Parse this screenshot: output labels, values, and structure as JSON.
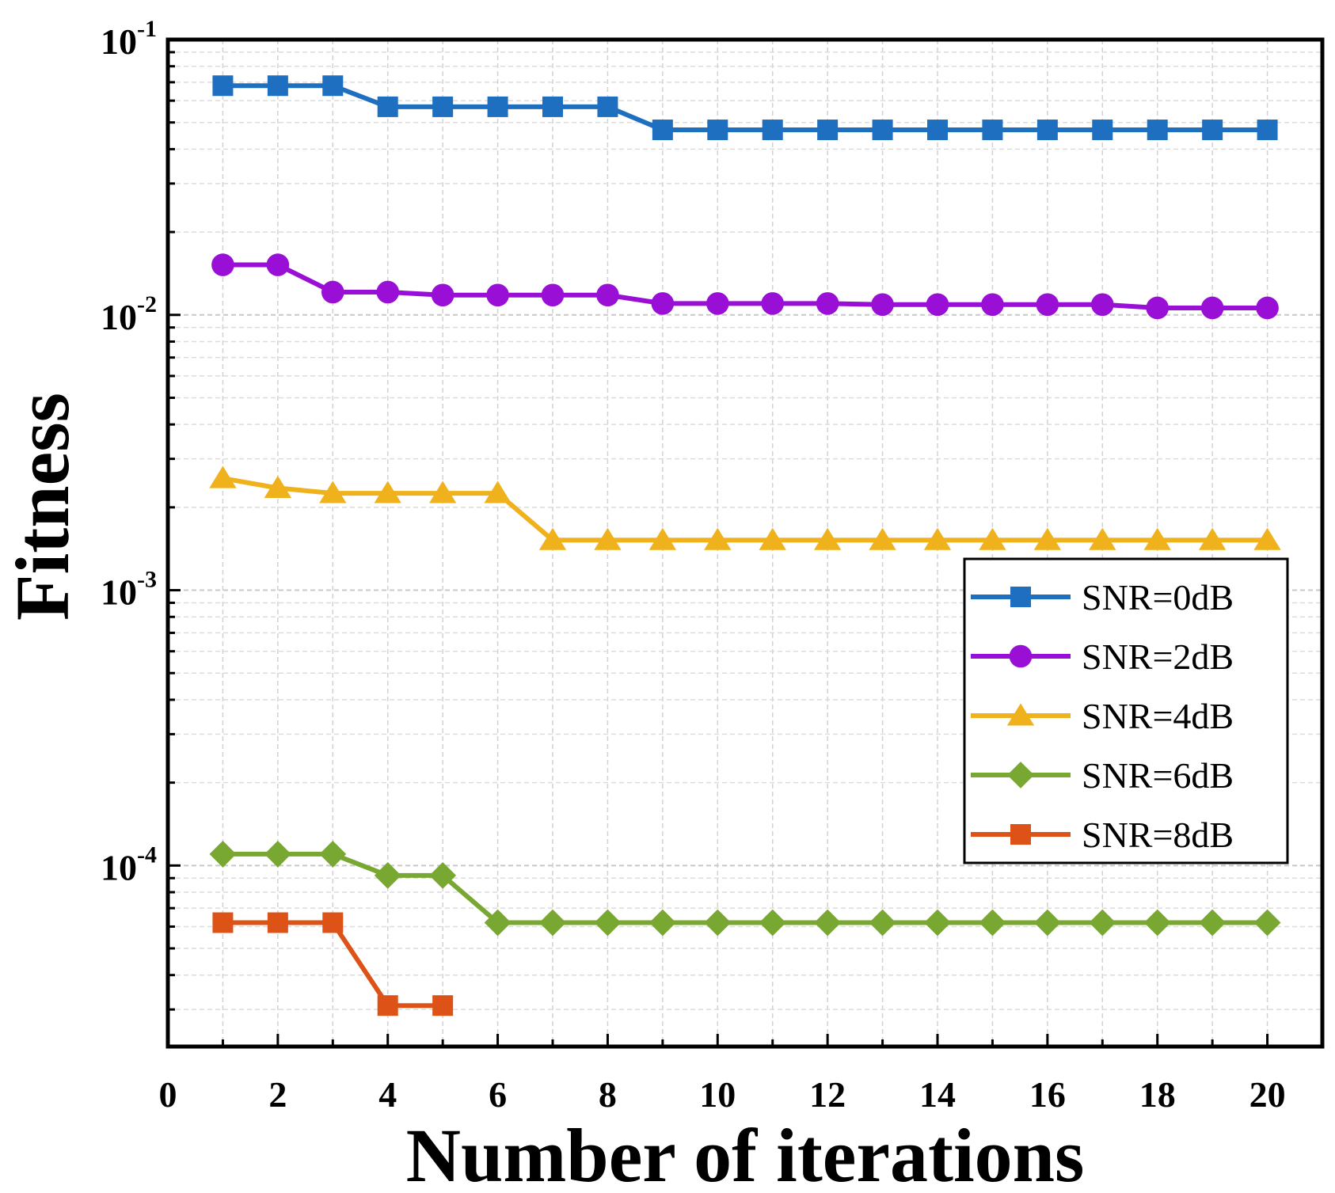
{
  "chart_data": {
    "type": "line",
    "title": "",
    "xlabel": "Number of iterations",
    "ylabel": "Fitness",
    "xlim": [
      0,
      21
    ],
    "ylim": [
      2.2e-05,
      0.1
    ],
    "yscale": "log",
    "grid": true,
    "legend_position": "center-right",
    "x_ticks": [
      "0",
      "2",
      "4",
      "6",
      "8",
      "10",
      "12",
      "14",
      "16",
      "18",
      "20"
    ],
    "y_ticks": [
      {
        "base": "10",
        "exp": "-1",
        "value": 0.1
      },
      {
        "base": "10",
        "exp": "-2",
        "value": 0.01
      },
      {
        "base": "10",
        "exp": "-3",
        "value": 0.001
      },
      {
        "base": "10",
        "exp": "-4",
        "value": 0.0001
      }
    ],
    "series": [
      {
        "name": "SNR=0dB",
        "color": "#1f6fc0",
        "marker": "square",
        "x": [
          1,
          2,
          3,
          4,
          5,
          6,
          7,
          8,
          9,
          10,
          11,
          12,
          13,
          14,
          15,
          16,
          17,
          18,
          19,
          20
        ],
        "values": [
          0.068,
          0.068,
          0.068,
          0.057,
          0.057,
          0.057,
          0.057,
          0.057,
          0.047,
          0.047,
          0.047,
          0.047,
          0.047,
          0.047,
          0.047,
          0.047,
          0.047,
          0.047,
          0.047,
          0.047
        ]
      },
      {
        "name": "SNR=2dB",
        "color": "#9a0fd6",
        "marker": "circle",
        "x": [
          1,
          2,
          3,
          4,
          5,
          6,
          7,
          8,
          9,
          10,
          11,
          12,
          13,
          14,
          15,
          16,
          17,
          18,
          19,
          20
        ],
        "values": [
          0.0152,
          0.0152,
          0.0121,
          0.0121,
          0.0118,
          0.0118,
          0.0118,
          0.0118,
          0.011,
          0.011,
          0.011,
          0.011,
          0.0109,
          0.0109,
          0.0109,
          0.0109,
          0.0109,
          0.0106,
          0.0106,
          0.0106
        ]
      },
      {
        "name": "SNR=4dB",
        "color": "#f0b21c",
        "marker": "triangle",
        "x": [
          1,
          2,
          3,
          4,
          5,
          6,
          7,
          8,
          9,
          10,
          11,
          12,
          13,
          14,
          15,
          16,
          17,
          18,
          19,
          20
        ],
        "values": [
          0.00255,
          0.00235,
          0.00225,
          0.00225,
          0.00225,
          0.00225,
          0.00152,
          0.00152,
          0.00152,
          0.00152,
          0.00152,
          0.00152,
          0.00152,
          0.00152,
          0.00152,
          0.00152,
          0.00152,
          0.00152,
          0.00152,
          0.00152
        ]
      },
      {
        "name": "SNR=6dB",
        "color": "#78a832",
        "marker": "diamond",
        "x": [
          1,
          2,
          3,
          4,
          5,
          6,
          7,
          8,
          9,
          10,
          11,
          12,
          13,
          14,
          15,
          16,
          17,
          18,
          19,
          20
        ],
        "values": [
          0.00011,
          0.00011,
          0.00011,
          9.2e-05,
          9.2e-05,
          6.2e-05,
          6.2e-05,
          6.2e-05,
          6.2e-05,
          6.2e-05,
          6.2e-05,
          6.2e-05,
          6.2e-05,
          6.2e-05,
          6.2e-05,
          6.2e-05,
          6.2e-05,
          6.2e-05,
          6.2e-05,
          6.2e-05
        ]
      },
      {
        "name": "SNR=8dB",
        "color": "#dd5317",
        "marker": "square",
        "x": [
          1,
          2,
          3,
          4,
          5
        ],
        "values": [
          6.2e-05,
          6.2e-05,
          6.2e-05,
          3.1e-05,
          3.1e-05
        ]
      }
    ]
  }
}
